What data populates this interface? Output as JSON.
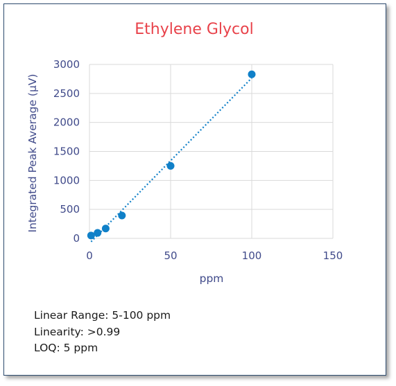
{
  "chart_data": {
    "type": "scatter",
    "title": "Ethylene Glycol",
    "xlabel": "ppm",
    "ylabel": "Integrated Peak Average (µV)",
    "xlim": [
      0,
      150
    ],
    "ylim": [
      0,
      3000
    ],
    "xticks": [
      "0",
      "50",
      "100",
      "150"
    ],
    "yticks": [
      "0",
      "500",
      "1000",
      "1500",
      "2000",
      "2500",
      "3000"
    ],
    "grid": true,
    "trendline": "linear-dotted",
    "series": [
      {
        "x": [
          1,
          5,
          10,
          20,
          50,
          100
        ],
        "y": [
          50,
          95,
          170,
          395,
          1250,
          2830
        ],
        "color": "#1080c8"
      }
    ]
  },
  "notes": {
    "linear_range": "Linear Range: 5-100 ppm",
    "linearity": "Linearity: >0.99",
    "loq": "LOQ: 5 ppm"
  }
}
